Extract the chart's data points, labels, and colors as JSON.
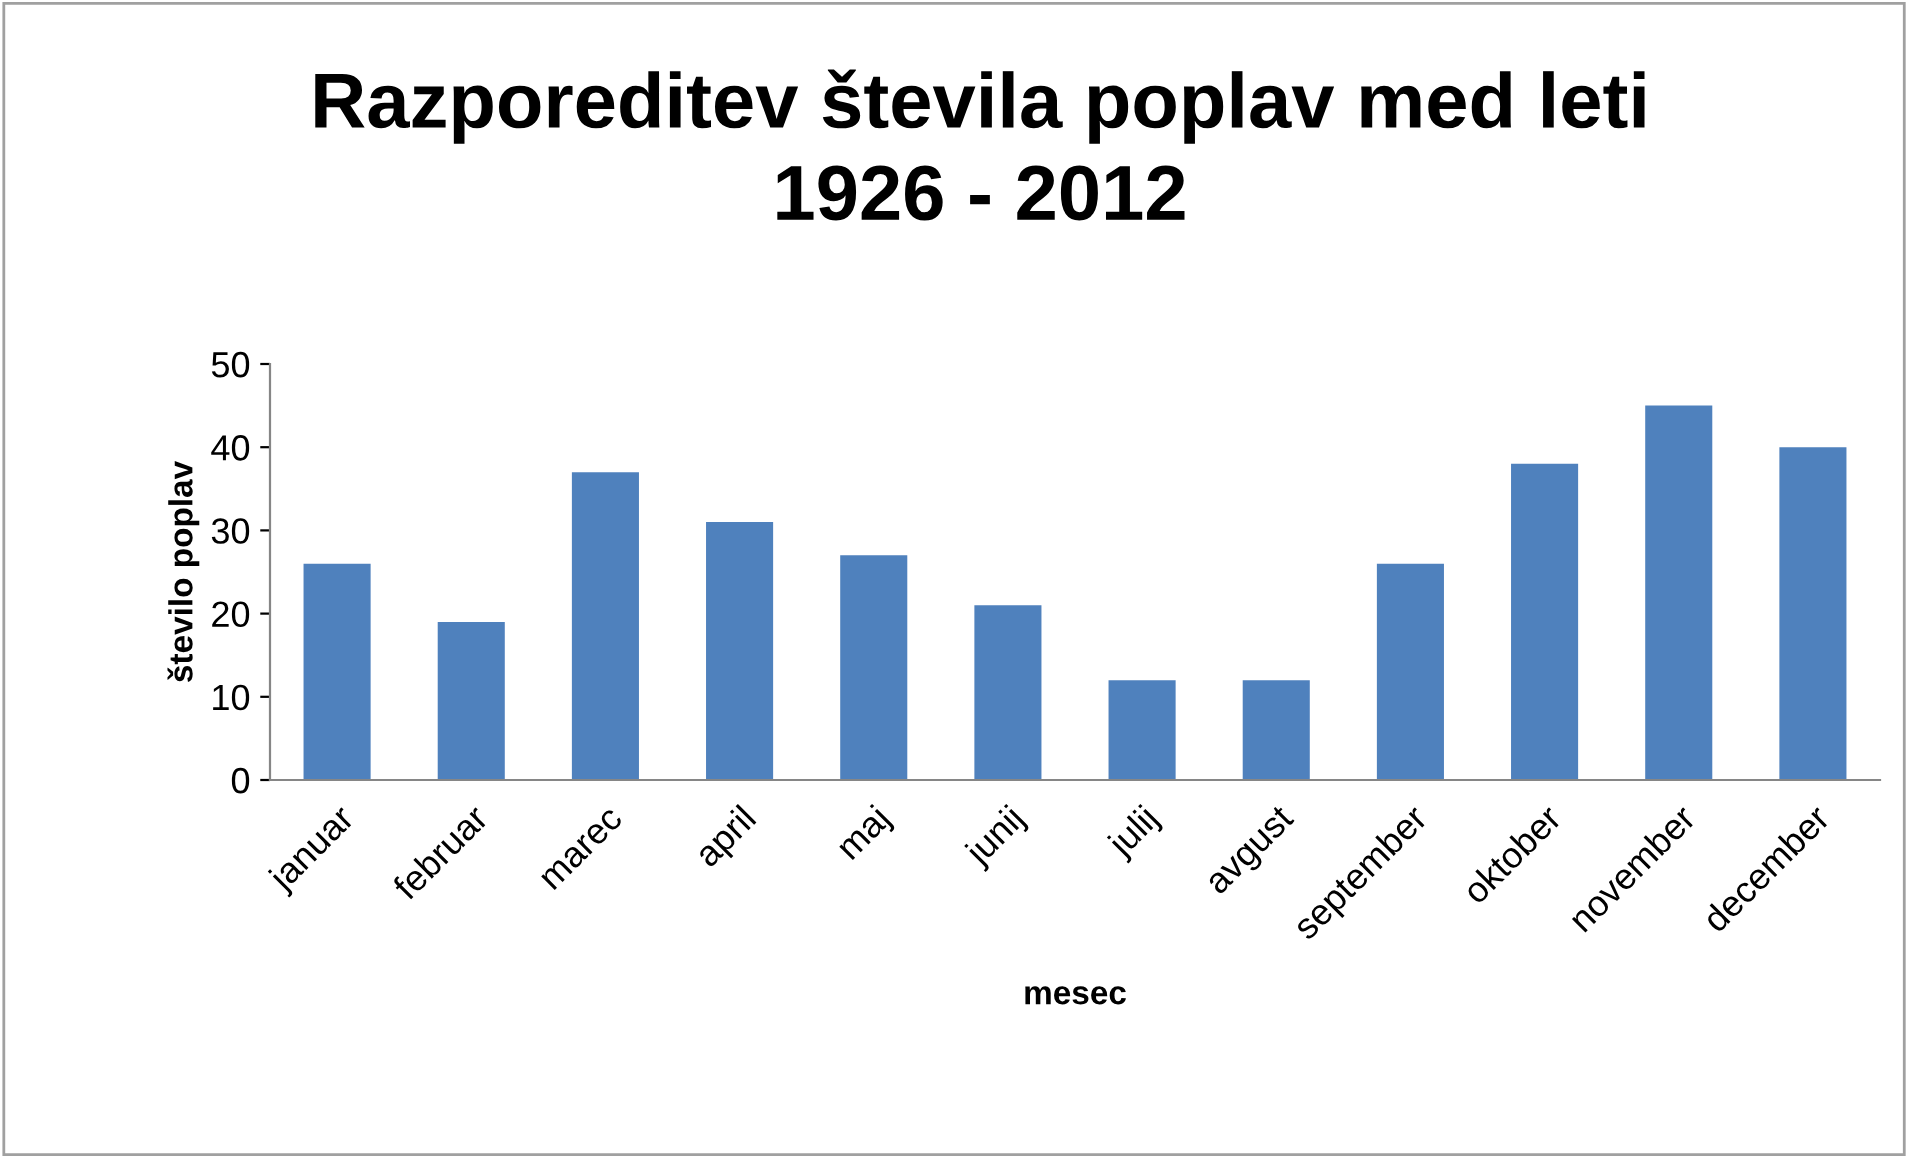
{
  "chart_data": {
    "type": "bar",
    "title": "Razporeditev števila poplav med leti\n1926 - 2012",
    "xlabel": "mesec",
    "ylabel": "število poplav",
    "categories": [
      "januar",
      "februar",
      "marec",
      "april",
      "maj",
      "junij",
      "julij",
      "avgust",
      "september",
      "oktober",
      "november",
      "december"
    ],
    "values": [
      26,
      19,
      37,
      31,
      27,
      21,
      12,
      12,
      26,
      38,
      45,
      40
    ],
    "color": "#4f81bd",
    "ylim": [
      0,
      50
    ],
    "yticks": [
      0,
      10,
      20,
      30,
      40,
      50
    ],
    "grid": false,
    "legend": false
  }
}
